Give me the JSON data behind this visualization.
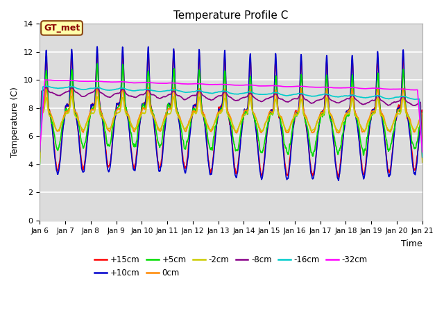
{
  "title": "Temperature Profile C",
  "xlabel": "Time",
  "ylabel": "Temperature (C)",
  "ylim": [
    0,
    14
  ],
  "bg_color": "#dcdcdc",
  "fig_color": "#ffffff",
  "gt_met_label": "GT_met",
  "legend_entries": [
    "+15cm",
    "+10cm",
    "+5cm",
    "0cm",
    "-2cm",
    "-8cm",
    "-16cm",
    "-32cm"
  ],
  "legend_colors": [
    "#ff0000",
    "#0000cc",
    "#00dd00",
    "#ff8800",
    "#cccc00",
    "#880088",
    "#00cccc",
    "#ff00ff"
  ],
  "xtick_labels": [
    "Jan 6",
    "Jan 7",
    "Jan 8",
    "Jan 9",
    "Jan 10",
    "Jan 11",
    "Jan 12",
    "Jan 13",
    "Jan 14",
    "Jan 15",
    "Jan 16",
    "Jan 17",
    "Jan 18",
    "Jan 19",
    "Jan 20",
    "Jan 21"
  ],
  "yticks": [
    0,
    2,
    4,
    6,
    8,
    10,
    12,
    14
  ],
  "n_points": 1500
}
